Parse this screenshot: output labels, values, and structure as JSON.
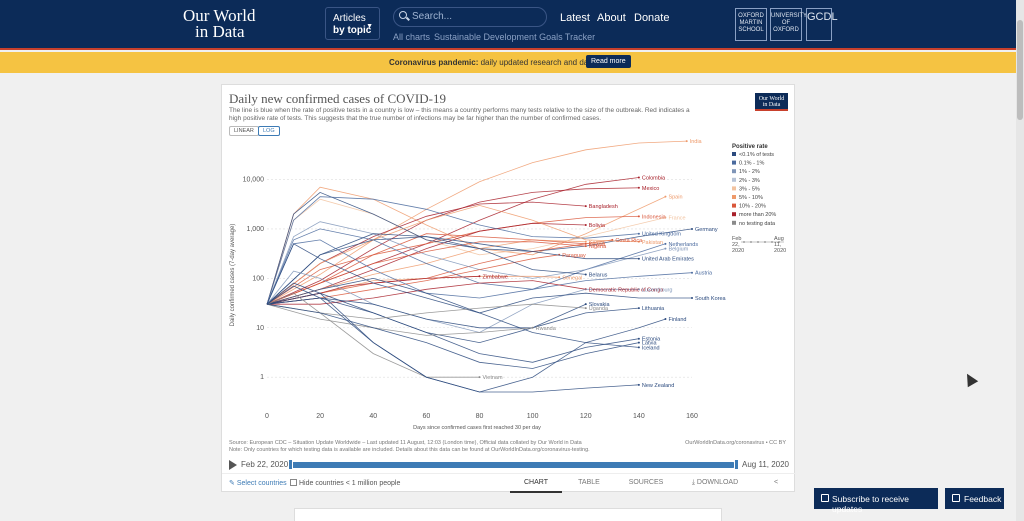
{
  "nav": {
    "logo_line1": "Our World",
    "logo_line2": "in Data",
    "articles_line1": "Articles",
    "articles_line2": "by topic",
    "search_placeholder": "Search...",
    "links": [
      "Latest",
      "About",
      "Donate"
    ],
    "sublinks": [
      "All charts",
      "Sustainable Development Goals Tracker"
    ],
    "partners": [
      "OXFORD MARTIN SCHOOL",
      "UNIVERSITY OF OXFORD",
      "GCDL"
    ]
  },
  "banner": {
    "bold": "Coronavirus pandemic:",
    "text": " daily updated research and data.",
    "button": "Read more"
  },
  "chart_card": {
    "title": "Daily new confirmed cases of COVID-19",
    "subtitle": "The line is blue when the rate of positive tests in a country is low – this means a country performs many tests relative to the size of the outbreak. Red indicates a high positive rate of tests. This suggests that the true number of infections may be far higher than the number of confirmed cases.",
    "badge_line1": "Our World",
    "badge_line2": "in Data",
    "scale_linear": "LINEAR",
    "scale_log": "LOG",
    "source": "Source: European CDC – Situation Update Worldwide – Last updated 11 August, 12:03 (London time), Official data collated by Our World in Data",
    "note": "Note: Only countries for which testing data is available are included. Details about this data can be found at OurWorldInData.org/coronavirus-testing.",
    "url_credit": "OurWorldInData.org/coronavirus • CC BY",
    "timeline_start": "Feb 22, 2020",
    "timeline_end": "Aug 11, 2020",
    "select_countries": "Select countries",
    "hide_small": "Hide countries < 1 million people",
    "tabs": [
      "CHART",
      "TABLE",
      "SOURCES",
      "DOWNLOAD"
    ]
  },
  "chart_data": {
    "type": "line",
    "title": "Daily new confirmed cases of COVID-19",
    "xlabel": "Days since confirmed cases first reached 30 per day",
    "ylabel": "Daily confirmed cases (7-day average)",
    "xlim": [
      0,
      160
    ],
    "ylim": [
      0.3,
      50000
    ],
    "y_scale": "log",
    "x_ticks": [
      0,
      20,
      40,
      60,
      80,
      100,
      120,
      140,
      160
    ],
    "y_ticks": [
      1,
      10,
      100,
      1000,
      10000
    ],
    "y_tick_labels": [
      "1",
      "10",
      "100",
      "1,000",
      "10,000"
    ],
    "legend": {
      "title": "Positive rate",
      "placement": "right",
      "items": [
        {
          "label": "<0.1% of tests",
          "color": "#2b4a7e"
        },
        {
          "label": "0.1% - 1%",
          "color": "#4a6a9e"
        },
        {
          "label": "1% - 2%",
          "color": "#7f95b8"
        },
        {
          "label": "2% - 3%",
          "color": "#b7c3d6"
        },
        {
          "label": "3% - 5%",
          "color": "#f2c3a0"
        },
        {
          "label": "5% - 10%",
          "color": "#ee9a6b"
        },
        {
          "label": "10% - 20%",
          "color": "#d9573b"
        },
        {
          "label": "more than 20%",
          "color": "#a8202a"
        },
        {
          "label": "no testing data",
          "color": "#8a8a8a"
        }
      ],
      "date_start_line1": "Feb",
      "date_start_line2": "22,",
      "date_start_line3": "2020",
      "date_end_line1": "Aug",
      "date_end_line2": "11,",
      "date_end_line3": "2020"
    },
    "series": [
      {
        "name": "India",
        "color": "#ee9a6b",
        "x": [
          0,
          20,
          40,
          60,
          80,
          100,
          120,
          140,
          158
        ],
        "y": [
          30,
          120,
          600,
          2500,
          9000,
          22000,
          40000,
          55000,
          60000
        ]
      },
      {
        "name": "Colombia",
        "color": "#a8202a",
        "x": [
          0,
          20,
          40,
          60,
          80,
          100,
          120,
          140
        ],
        "y": [
          30,
          80,
          200,
          500,
          1500,
          4000,
          8000,
          11000
        ]
      },
      {
        "name": "Mexico",
        "color": "#a8202a",
        "x": [
          0,
          20,
          40,
          60,
          80,
          100,
          120,
          140
        ],
        "y": [
          30,
          90,
          400,
          1500,
          3500,
          5500,
          6500,
          6800
        ]
      },
      {
        "name": "Spain",
        "color": "#ee9a6b",
        "x": [
          0,
          10,
          20,
          40,
          60,
          80,
          100,
          120,
          150
        ],
        "y": [
          30,
          2000,
          7000,
          4000,
          1200,
          400,
          300,
          800,
          4500
        ]
      },
      {
        "name": "Bangladesh",
        "color": "#a8202a",
        "x": [
          0,
          20,
          40,
          60,
          80,
          100,
          120
        ],
        "y": [
          30,
          200,
          700,
          1800,
          3200,
          3500,
          2900
        ]
      },
      {
        "name": "Indonesia",
        "color": "#d9573b",
        "x": [
          0,
          20,
          40,
          60,
          80,
          100,
          120,
          140
        ],
        "y": [
          30,
          150,
          300,
          500,
          900,
          1300,
          1700,
          1800
        ]
      },
      {
        "name": "France",
        "color": "#f2c3a0",
        "x": [
          0,
          10,
          20,
          40,
          60,
          80,
          100,
          120,
          150
        ],
        "y": [
          30,
          1500,
          4000,
          2000,
          600,
          300,
          400,
          700,
          1700
        ]
      },
      {
        "name": "Bolivia",
        "color": "#a8202a",
        "x": [
          0,
          20,
          40,
          60,
          80,
          100,
          120
        ],
        "y": [
          30,
          60,
          150,
          400,
          900,
          1300,
          1200
        ]
      },
      {
        "name": "Germany",
        "color": "#2b4a7e",
        "x": [
          0,
          10,
          20,
          40,
          60,
          80,
          100,
          120,
          140,
          160
        ],
        "y": [
          30,
          2000,
          5500,
          2000,
          600,
          400,
          350,
          450,
          700,
          1000
        ]
      },
      {
        "name": "United Kingdom",
        "color": "#4a6a9e",
        "x": [
          0,
          10,
          20,
          40,
          60,
          80,
          100,
          120,
          140
        ],
        "y": [
          30,
          1500,
          4500,
          4000,
          2500,
          1200,
          700,
          650,
          800
        ]
      },
      {
        "name": "Costa Rica",
        "color": "#d9573b",
        "x": [
          0,
          20,
          40,
          60,
          80,
          100,
          120,
          130
        ],
        "y": [
          30,
          50,
          80,
          100,
          200,
          350,
          500,
          600
        ]
      },
      {
        "name": "Kenya",
        "color": "#ee9a6b",
        "x": [
          0,
          20,
          40,
          60,
          80,
          100,
          120
        ],
        "y": [
          30,
          60,
          120,
          200,
          400,
          600,
          550
        ]
      },
      {
        "name": "Kuwait",
        "color": "#d9573b",
        "x": [
          0,
          20,
          40,
          60,
          80,
          100,
          120
        ],
        "y": [
          30,
          80,
          300,
          800,
          700,
          600,
          500
        ]
      },
      {
        "name": "Netherlands",
        "color": "#4a6a9e",
        "x": [
          0,
          10,
          20,
          40,
          60,
          80,
          100,
          120,
          150
        ],
        "y": [
          30,
          600,
          1000,
          600,
          200,
          80,
          60,
          150,
          500
        ]
      },
      {
        "name": "Belgium",
        "color": "#7f95b8",
        "x": [
          0,
          10,
          20,
          40,
          60,
          80,
          100,
          120,
          150
        ],
        "y": [
          30,
          700,
          1400,
          800,
          300,
          150,
          100,
          150,
          400
        ]
      },
      {
        "name": "Nigeria",
        "color": "#d9573b",
        "x": [
          0,
          20,
          40,
          60,
          80,
          100,
          120
        ],
        "y": [
          30,
          80,
          200,
          350,
          550,
          550,
          450
        ]
      },
      {
        "name": "Pakistan",
        "color": "#ee9a6b",
        "x": [
          0,
          20,
          40,
          60,
          80,
          100,
          120,
          140
        ],
        "y": [
          30,
          200,
          600,
          1500,
          3000,
          1500,
          600,
          550
        ]
      },
      {
        "name": "Paraguay",
        "color": "#d9573b",
        "x": [
          0,
          20,
          40,
          60,
          80,
          100,
          110
        ],
        "y": [
          30,
          40,
          60,
          90,
          150,
          250,
          300
        ]
      },
      {
        "name": "Senegal",
        "color": "#ee9a6b",
        "x": [
          0,
          20,
          40,
          60,
          80,
          100,
          110
        ],
        "y": [
          30,
          50,
          90,
          100,
          110,
          110,
          105
        ]
      },
      {
        "name": "United Arab Emirates",
        "color": "#2b4a7e",
        "x": [
          0,
          20,
          40,
          60,
          80,
          100,
          120,
          140
        ],
        "y": [
          30,
          300,
          600,
          700,
          500,
          350,
          250,
          250
        ]
      },
      {
        "name": "Belarus",
        "color": "#2b4a7e",
        "x": [
          0,
          20,
          40,
          60,
          80,
          100,
          120
        ],
        "y": [
          30,
          300,
          800,
          700,
          400,
          150,
          120
        ]
      },
      {
        "name": "Austria",
        "color": "#4a6a9e",
        "x": [
          0,
          10,
          20,
          40,
          60,
          80,
          100,
          120,
          140,
          160
        ],
        "y": [
          30,
          500,
          600,
          150,
          50,
          40,
          60,
          90,
          110,
          130
        ]
      },
      {
        "name": "Democratic Republic of Congo",
        "color": "#a8202a",
        "x": [
          0,
          20,
          40,
          60,
          80,
          100,
          120
        ],
        "y": [
          30,
          30,
          40,
          60,
          80,
          90,
          60
        ]
      },
      {
        "name": "Zimbabwe",
        "color": "#a8202a",
        "x": [
          0,
          20,
          30,
          40,
          60,
          80
        ],
        "y": [
          30,
          50,
          70,
          80,
          100,
          110
        ]
      },
      {
        "name": "Luxembourg",
        "color": "#7f95b8",
        "x": [
          0,
          10,
          20,
          40,
          60,
          80,
          100,
          120,
          140
        ],
        "y": [
          30,
          140,
          100,
          30,
          15,
          8,
          30,
          60,
          60
        ]
      },
      {
        "name": "South Korea",
        "color": "#2b4a7e",
        "x": [
          0,
          10,
          20,
          40,
          60,
          80,
          100,
          120,
          140,
          160
        ],
        "y": [
          30,
          500,
          250,
          80,
          40,
          20,
          40,
          50,
          40,
          40
        ]
      },
      {
        "name": "Slovakia",
        "color": "#2b4a7e",
        "x": [
          0,
          20,
          40,
          60,
          80,
          100,
          120
        ],
        "y": [
          30,
          40,
          20,
          8,
          5,
          10,
          30
        ]
      },
      {
        "name": "Finland",
        "color": "#2b4a7e",
        "x": [
          0,
          20,
          40,
          60,
          80,
          100,
          120,
          140,
          150
        ],
        "y": [
          30,
          60,
          100,
          50,
          20,
          8,
          5,
          10,
          15
        ]
      },
      {
        "name": "Lithuania",
        "color": "#2b4a7e",
        "x": [
          0,
          20,
          40,
          60,
          80,
          100,
          120,
          140
        ],
        "y": [
          30,
          40,
          30,
          15,
          10,
          10,
          20,
          25
        ]
      },
      {
        "name": "Estonia",
        "color": "#2b4a7e",
        "x": [
          0,
          20,
          40,
          60,
          80,
          100,
          120,
          140
        ],
        "y": [
          30,
          50,
          20,
          8,
          3,
          2,
          4,
          6
        ]
      },
      {
        "name": "Uganda",
        "color": "#8a8a8a",
        "x": [
          0,
          20,
          40,
          60,
          80,
          100,
          120
        ],
        "y": [
          30,
          20,
          15,
          20,
          25,
          30,
          25
        ]
      },
      {
        "name": "Rwanda",
        "color": "#8a8a8a",
        "x": [
          0,
          20,
          40,
          60,
          80,
          100
        ],
        "y": [
          30,
          15,
          10,
          7,
          8,
          10
        ]
      },
      {
        "name": "Vietnam",
        "color": "#8a8a8a",
        "x": [
          0,
          10,
          20,
          40,
          60,
          80
        ],
        "y": [
          30,
          50,
          20,
          3,
          1,
          1
        ]
      },
      {
        "name": "Latvia",
        "color": "#2b4a7e",
        "x": [
          0,
          20,
          40,
          60,
          80,
          100,
          120,
          140
        ],
        "y": [
          30,
          20,
          10,
          5,
          2,
          1.5,
          3,
          5
        ]
      },
      {
        "name": "Iceland",
        "color": "#2b4a7e",
        "x": [
          0,
          10,
          20,
          40,
          60,
          80,
          100,
          120,
          140
        ],
        "y": [
          30,
          80,
          50,
          5,
          1,
          0.5,
          1,
          5,
          4
        ]
      },
      {
        "name": "New Zealand",
        "color": "#2b4a7e",
        "x": [
          0,
          10,
          20,
          40,
          60,
          80,
          100,
          120,
          140
        ],
        "y": [
          30,
          70,
          40,
          5,
          1,
          0.5,
          0.5,
          0.6,
          0.7
        ]
      }
    ]
  },
  "footer": {
    "subscribe": "Subscribe to receive updates",
    "feedback": "Feedback"
  }
}
